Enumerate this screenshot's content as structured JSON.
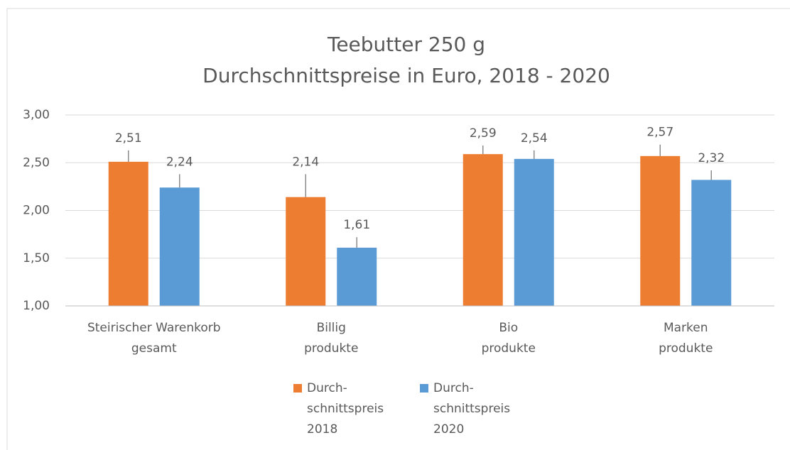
{
  "chart_data": {
    "type": "bar",
    "title": "Teebutter 250 g",
    "subtitle": "Durchschnittspreise in Euro, 2018 - 2020",
    "categories": [
      "Steirischer Warenkorb\ngesamt",
      "Billig\nprodukte",
      "Bio\nprodukte",
      "Marken\nprodukte"
    ],
    "series": [
      {
        "name": "Durch-\nschnittspreis\n2018",
        "color": "#ed7d31",
        "values": [
          2.51,
          2.14,
          2.59,
          2.57
        ],
        "value_labels": [
          "2,51",
          "2,14",
          "2,59",
          "2,57"
        ],
        "errors": [
          0.12,
          0.24,
          0.09,
          0.12
        ]
      },
      {
        "name": "Durch-\nschnittspreis\n2020",
        "color": "#5b9bd5",
        "values": [
          2.24,
          1.61,
          2.54,
          2.32
        ],
        "value_labels": [
          "2,24",
          "1,61",
          "2,54",
          "2,32"
        ],
        "errors": [
          0.14,
          0.11,
          0.09,
          0.1
        ]
      }
    ],
    "ylim": [
      1,
      3
    ],
    "yticks": [
      {
        "value": 1,
        "label": "1,00"
      },
      {
        "value": 1.5,
        "label": "1,50"
      },
      {
        "value": 2,
        "label": "2,00"
      },
      {
        "value": 2.5,
        "label": "2,50"
      },
      {
        "value": 3,
        "label": "3,00"
      }
    ],
    "grid": true,
    "legend": "bottom"
  }
}
